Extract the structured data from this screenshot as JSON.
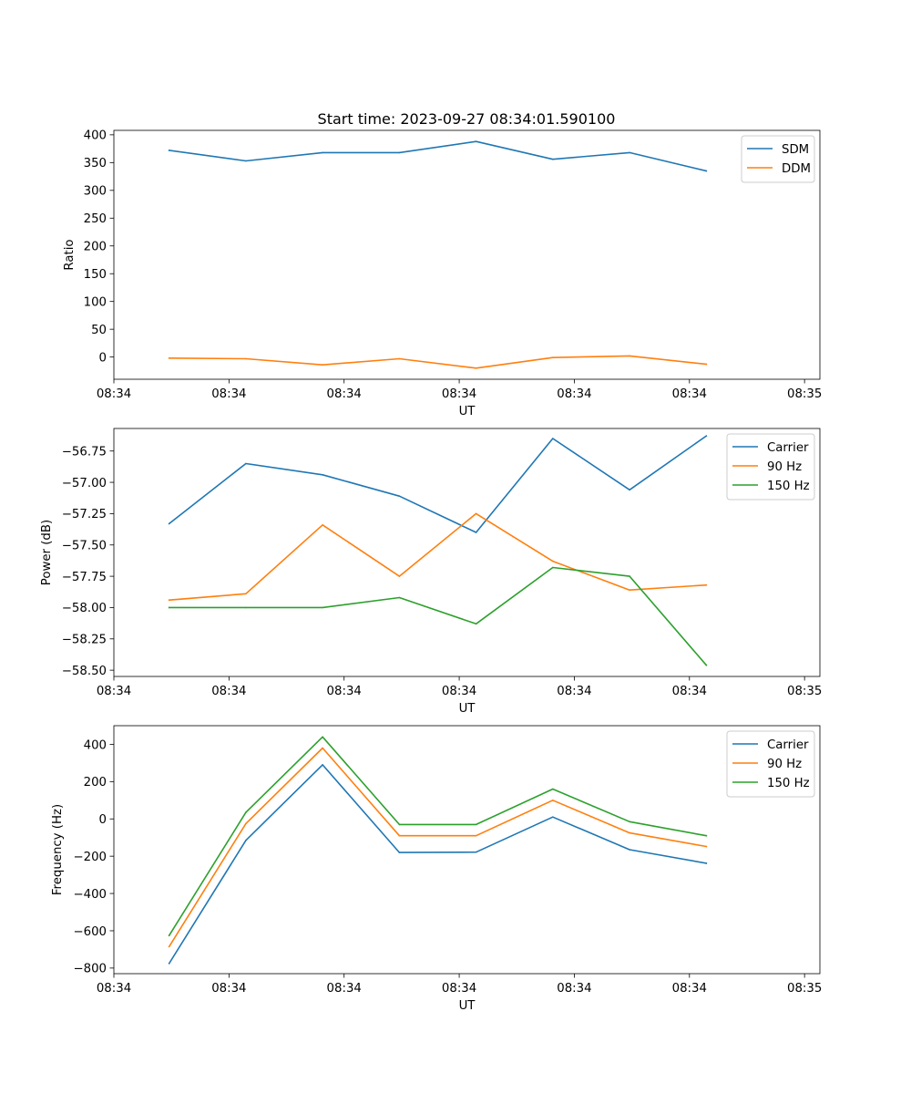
{
  "chart_data": [
    {
      "type": "line",
      "title": "Start time: 2023-09-27 08:34:01.590100",
      "xlabel": "UT",
      "ylabel": "Ratio",
      "x": [
        1,
        2,
        3,
        4,
        5,
        6,
        7,
        8
      ],
      "xlim": [
        0.28,
        9.48
      ],
      "xticks": [
        0.28,
        1.78,
        3.28,
        4.78,
        6.28,
        7.78,
        9.28
      ],
      "xtick_labels": [
        "08:34",
        "08:34",
        "08:34",
        "08:34",
        "08:34",
        "08:34",
        "08:35"
      ],
      "ylim": [
        -40,
        408
      ],
      "yticks": [
        0,
        50,
        100,
        150,
        200,
        250,
        300,
        350,
        400
      ],
      "ytick_labels": [
        "0",
        "50",
        "100",
        "150",
        "200",
        "250",
        "300",
        "350",
        "400"
      ],
      "legend_loc": "top-right",
      "series": [
        {
          "name": "SDM",
          "color": "#1f77b4",
          "values": [
            372,
            353,
            368,
            368,
            388,
            356,
            368,
            335
          ]
        },
        {
          "name": "DDM",
          "color": "#ff7f0e",
          "values": [
            -2,
            -3,
            -14,
            -3,
            -20,
            -1,
            2,
            -13
          ]
        }
      ]
    },
    {
      "type": "line",
      "title": "",
      "xlabel": "UT",
      "ylabel": "Power (dB)",
      "x": [
        1,
        2,
        3,
        4,
        5,
        6,
        7,
        8
      ],
      "xlim": [
        0.28,
        9.48
      ],
      "xticks": [
        0.28,
        1.78,
        3.28,
        4.78,
        6.28,
        7.78,
        9.28
      ],
      "xtick_labels": [
        "08:34",
        "08:34",
        "08:34",
        "08:34",
        "08:34",
        "08:34",
        "08:35"
      ],
      "ylim": [
        -58.55,
        -56.57
      ],
      "yticks": [
        -58.5,
        -58.25,
        -58.0,
        -57.75,
        -57.5,
        -57.25,
        -57.0,
        -56.75
      ],
      "ytick_labels": [
        "−58.50",
        "−58.25",
        "−58.00",
        "−57.75",
        "−57.50",
        "−57.25",
        "−57.00",
        "−56.75"
      ],
      "legend_loc": "top-right",
      "series": [
        {
          "name": "Carrier",
          "color": "#1f77b4",
          "values": [
            -57.33,
            -56.85,
            -56.94,
            -57.11,
            -57.4,
            -56.65,
            -57.06,
            -56.63
          ]
        },
        {
          "name": "90 Hz",
          "color": "#ff7f0e",
          "values": [
            -57.94,
            -57.89,
            -57.34,
            -57.75,
            -57.25,
            -57.63,
            -57.86,
            -57.82
          ]
        },
        {
          "name": "150 Hz",
          "color": "#2ca02c",
          "values": [
            -58.0,
            -58.0,
            -58.0,
            -57.92,
            -58.13,
            -57.68,
            -57.75,
            -58.46
          ]
        }
      ]
    },
    {
      "type": "line",
      "title": "",
      "xlabel": "UT",
      "ylabel": "Frequency (Hz)",
      "x": [
        1,
        2,
        3,
        4,
        5,
        6,
        7,
        8
      ],
      "xlim": [
        0.28,
        9.48
      ],
      "xticks": [
        0.28,
        1.78,
        3.28,
        4.78,
        6.28,
        7.78,
        9.28
      ],
      "xtick_labels": [
        "08:34",
        "08:34",
        "08:34",
        "08:34",
        "08:34",
        "08:34",
        "08:35"
      ],
      "ylim": [
        -830,
        500
      ],
      "yticks": [
        -800,
        -600,
        -400,
        -200,
        0,
        200,
        400
      ],
      "ytick_labels": [
        "−800",
        "−600",
        "−400",
        "−200",
        "0",
        "200",
        "400"
      ],
      "legend_loc": "top-right",
      "series": [
        {
          "name": "Carrier",
          "color": "#1f77b4",
          "values": [
            -775,
            -115,
            290,
            -180,
            -178,
            10,
            -165,
            -238
          ]
        },
        {
          "name": "90 Hz",
          "color": "#ff7f0e",
          "values": [
            -685,
            -25,
            380,
            -90,
            -90,
            100,
            -75,
            -148
          ]
        },
        {
          "name": "150 Hz",
          "color": "#2ca02c",
          "values": [
            -625,
            35,
            440,
            -30,
            -30,
            160,
            -15,
            -90
          ]
        }
      ]
    }
  ]
}
